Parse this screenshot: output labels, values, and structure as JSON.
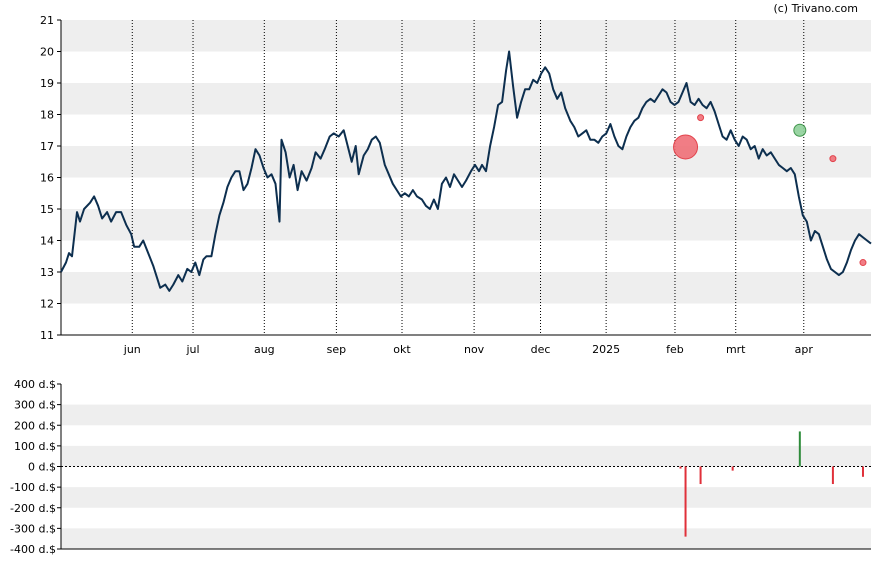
{
  "copyright": "(c) Trivano.com",
  "colors": {
    "line": "#0d2f4f",
    "band": "#eeeeee",
    "buy": "#2e8b3a",
    "sell": "#e0303a",
    "buy_marker": "#8fd09a",
    "sell_marker": "#f07078"
  },
  "chart_data": [
    {
      "type": "line",
      "title": "",
      "xlabel": "",
      "ylabel": "",
      "ylim": [
        11,
        21
      ],
      "grid": "horizontal bands + dotted vertical month lines",
      "y_ticks": [
        "11",
        "12",
        "13",
        "14",
        "15",
        "16",
        "17",
        "18",
        "19",
        "20",
        "21"
      ],
      "x_ticks": [
        {
          "label": "jun",
          "t": 0.088
        },
        {
          "label": "jul",
          "t": 0.163
        },
        {
          "label": "aug",
          "t": 0.251
        },
        {
          "label": "sep",
          "t": 0.34
        },
        {
          "label": "okt",
          "t": 0.421
        },
        {
          "label": "nov",
          "t": 0.51
        },
        {
          "label": "dec",
          "t": 0.592
        },
        {
          "label": "2025",
          "t": 0.673
        },
        {
          "label": "feb",
          "t": 0.758
        },
        {
          "label": "mrt",
          "t": 0.833
        },
        {
          "label": "apr",
          "t": 0.917
        }
      ],
      "series": [
        {
          "points": [
            [
              0,
              13.0
            ],
            [
              0.005,
              13.3
            ],
            [
              0.008,
              13.6
            ],
            [
              0.011,
              13.5
            ],
            [
              0.016,
              14.9
            ],
            [
              0.019,
              14.6
            ],
            [
              0.023,
              15.0
            ],
            [
              0.029,
              15.2
            ],
            [
              0.033,
              15.4
            ],
            [
              0.037,
              15.1
            ],
            [
              0.041,
              14.7
            ],
            [
              0.046,
              14.9
            ],
            [
              0.05,
              14.6
            ],
            [
              0.055,
              14.9
            ],
            [
              0.06,
              14.9
            ],
            [
              0.065,
              14.5
            ],
            [
              0.07,
              14.2
            ],
            [
              0.073,
              13.8
            ],
            [
              0.078,
              13.8
            ],
            [
              0.082,
              14.0
            ],
            [
              0.087,
              13.6
            ],
            [
              0.092,
              13.2
            ],
            [
              0.096,
              12.8
            ],
            [
              0.099,
              12.5
            ],
            [
              0.104,
              12.6
            ],
            [
              0.108,
              12.4
            ],
            [
              0.112,
              12.6
            ],
            [
              0.117,
              12.9
            ],
            [
              0.121,
              12.7
            ],
            [
              0.126,
              13.1
            ],
            [
              0.13,
              13.0
            ],
            [
              0.134,
              13.3
            ],
            [
              0.138,
              12.9
            ],
            [
              0.142,
              13.4
            ],
            [
              0.145,
              13.5
            ],
            [
              0.15,
              13.5
            ],
            [
              0.154,
              14.2
            ],
            [
              0.158,
              14.8
            ],
            [
              0.162,
              15.2
            ],
            [
              0.166,
              15.7
            ],
            [
              0.17,
              16.0
            ],
            [
              0.174,
              16.2
            ],
            [
              0.178,
              16.2
            ],
            [
              0.182,
              15.6
            ],
            [
              0.186,
              15.8
            ],
            [
              0.19,
              16.3
            ],
            [
              0.194,
              16.9
            ],
            [
              0.198,
              16.7
            ],
            [
              0.202,
              16.3
            ],
            [
              0.206,
              16.0
            ],
            [
              0.21,
              16.1
            ],
            [
              0.214,
              15.8
            ],
            [
              0.218,
              14.6
            ],
            [
              0.22,
              17.2
            ],
            [
              0.224,
              16.8
            ],
            [
              0.228,
              16.0
            ],
            [
              0.232,
              16.4
            ],
            [
              0.236,
              15.6
            ],
            [
              0.24,
              16.2
            ],
            [
              0.245,
              15.9
            ],
            [
              0.25,
              16.3
            ],
            [
              0.254,
              16.8
            ],
            [
              0.259,
              16.6
            ],
            [
              0.263,
              16.9
            ],
            [
              0.268,
              17.3
            ],
            [
              0.272,
              17.4
            ],
            [
              0.277,
              17.3
            ],
            [
              0.282,
              17.5
            ],
            [
              0.286,
              17.0
            ],
            [
              0.29,
              16.5
            ],
            [
              0.294,
              17.0
            ],
            [
              0.297,
              16.1
            ],
            [
              0.302,
              16.7
            ],
            [
              0.306,
              16.9
            ],
            [
              0.31,
              17.2
            ],
            [
              0.314,
              17.3
            ],
            [
              0.318,
              17.1
            ],
            [
              0.323,
              16.4
            ],
            [
              0.327,
              16.1
            ],
            [
              0.331,
              15.8
            ],
            [
              0.335,
              15.6
            ],
            [
              0.339,
              15.4
            ],
            [
              0.343,
              15.5
            ],
            [
              0.347,
              15.4
            ],
            [
              0.351,
              15.6
            ],
            [
              0.355,
              15.4
            ],
            [
              0.36,
              15.3
            ],
            [
              0.364,
              15.1
            ],
            [
              0.368,
              15.0
            ],
            [
              0.372,
              15.3
            ],
            [
              0.376,
              15.0
            ],
            [
              0.38,
              15.8
            ],
            [
              0.384,
              16.0
            ],
            [
              0.388,
              15.7
            ],
            [
              0.392,
              16.1
            ],
            [
              0.396,
              15.9
            ],
            [
              0.4,
              15.7
            ],
            [
              0.404,
              15.9
            ],
            [
              0.409,
              16.2
            ],
            [
              0.413,
              16.4
            ],
            [
              0.417,
              16.2
            ],
            [
              0.42,
              16.4
            ],
            [
              0.424,
              16.2
            ],
            [
              0.428,
              17.0
            ],
            [
              0.432,
              17.6
            ],
            [
              0.436,
              18.3
            ],
            [
              0.44,
              18.4
            ],
            [
              0.444,
              19.4
            ],
            [
              0.447,
              20.0
            ],
            [
              0.451,
              18.9
            ],
            [
              0.455,
              17.9
            ],
            [
              0.459,
              18.4
            ],
            [
              0.463,
              18.8
            ],
            [
              0.467,
              18.8
            ],
            [
              0.471,
              19.1
            ],
            [
              0.475,
              19.0
            ],
            [
              0.479,
              19.3
            ],
            [
              0.483,
              19.5
            ],
            [
              0.487,
              19.3
            ],
            [
              0.491,
              18.8
            ],
            [
              0.495,
              18.5
            ],
            [
              0.499,
              18.7
            ],
            [
              0.503,
              18.2
            ],
            [
              0.508,
              17.8
            ],
            [
              0.512,
              17.6
            ],
            [
              0.516,
              17.3
            ],
            [
              0.52,
              17.4
            ],
            [
              0.524,
              17.5
            ],
            [
              0.528,
              17.2
            ],
            [
              0.532,
              17.2
            ],
            [
              0.536,
              17.1
            ],
            [
              0.54,
              17.3
            ],
            [
              0.544,
              17.4
            ],
            [
              0.548,
              17.7
            ],
            [
              0.552,
              17.3
            ],
            [
              0.556,
              17.0
            ],
            [
              0.56,
              16.9
            ],
            [
              0.564,
              17.3
            ],
            [
              0.568,
              17.6
            ],
            [
              0.572,
              17.8
            ],
            [
              0.576,
              17.9
            ],
            [
              0.58,
              18.2
            ],
            [
              0.584,
              18.4
            ],
            [
              0.588,
              18.5
            ],
            [
              0.592,
              18.4
            ],
            [
              0.596,
              18.6
            ],
            [
              0.6,
              18.8
            ],
            [
              0.604,
              18.7
            ],
            [
              0.608,
              18.4
            ],
            [
              0.612,
              18.3
            ],
            [
              0.616,
              18.4
            ],
            [
              0.62,
              18.7
            ],
            [
              0.624,
              19.0
            ],
            [
              0.628,
              18.4
            ],
            [
              0.632,
              18.3
            ],
            [
              0.636,
              18.5
            ],
            [
              0.64,
              18.3
            ],
            [
              0.644,
              18.2
            ],
            [
              0.648,
              18.4
            ],
            [
              0.652,
              18.1
            ],
            [
              0.656,
              17.7
            ],
            [
              0.66,
              17.3
            ],
            [
              0.664,
              17.2
            ],
            [
              0.668,
              17.5
            ],
            [
              0.672,
              17.2
            ],
            [
              0.676,
              17.0
            ],
            [
              0.68,
              17.3
            ],
            [
              0.684,
              17.2
            ],
            [
              0.688,
              16.9
            ],
            [
              0.692,
              17.0
            ],
            [
              0.696,
              16.6
            ],
            [
              0.7,
              16.9
            ],
            [
              0.704,
              16.7
            ],
            [
              0.708,
              16.8
            ],
            [
              0.712,
              16.6
            ],
            [
              0.716,
              16.4
            ],
            [
              0.72,
              16.3
            ],
            [
              0.724,
              16.2
            ],
            [
              0.728,
              16.3
            ],
            [
              0.732,
              16.1
            ],
            [
              0.736,
              15.4
            ],
            [
              0.74,
              14.8
            ],
            [
              0.744,
              14.6
            ],
            [
              0.748,
              14.0
            ],
            [
              0.752,
              14.3
            ],
            [
              0.756,
              14.2
            ],
            [
              0.76,
              13.8
            ],
            [
              0.764,
              13.4
            ],
            [
              0.768,
              13.1
            ],
            [
              0.772,
              13.0
            ],
            [
              0.776,
              12.9
            ],
            [
              0.78,
              13.0
            ],
            [
              0.784,
              13.3
            ],
            [
              0.788,
              13.7
            ],
            [
              0.792,
              14.0
            ],
            [
              0.796,
              14.2
            ],
            [
              0.8,
              14.1
            ],
            [
              0.804,
              14.0
            ],
            [
              0.808,
              13.9
            ]
          ]
        }
      ],
      "markers": [
        {
          "t": 0.623,
          "y": 16.97,
          "type": "sell",
          "size": "large"
        },
        {
          "t": 0.638,
          "y": 17.9,
          "type": "sell",
          "size": "small"
        },
        {
          "t": 0.737,
          "y": 17.5,
          "type": "buy",
          "size": "medium"
        },
        {
          "t": 0.77,
          "y": 16.6,
          "type": "sell",
          "size": "small"
        },
        {
          "t": 0.8,
          "y": 13.3,
          "type": "sell",
          "size": "small"
        }
      ]
    },
    {
      "type": "bar",
      "title": "",
      "xlabel": "",
      "ylabel": "",
      "ylim": [
        -400,
        400
      ],
      "grid": "horizontal bands",
      "y_ticks": [
        "400 d.$",
        "300 d.$",
        "200 d.$",
        "100 d.$",
        "0 d.$",
        "-100 d.$",
        "-200 d.$",
        "-300 d.$",
        "-400 d.$"
      ],
      "values": [
        {
          "t": 0.618,
          "value": -10
        },
        {
          "t": 0.623,
          "value": -340
        },
        {
          "t": 0.638,
          "value": -85
        },
        {
          "t": 0.67,
          "value": -20
        },
        {
          "t": 0.737,
          "value": 170
        },
        {
          "t": 0.77,
          "value": -85
        },
        {
          "t": 0.8,
          "value": -50
        }
      ]
    }
  ]
}
